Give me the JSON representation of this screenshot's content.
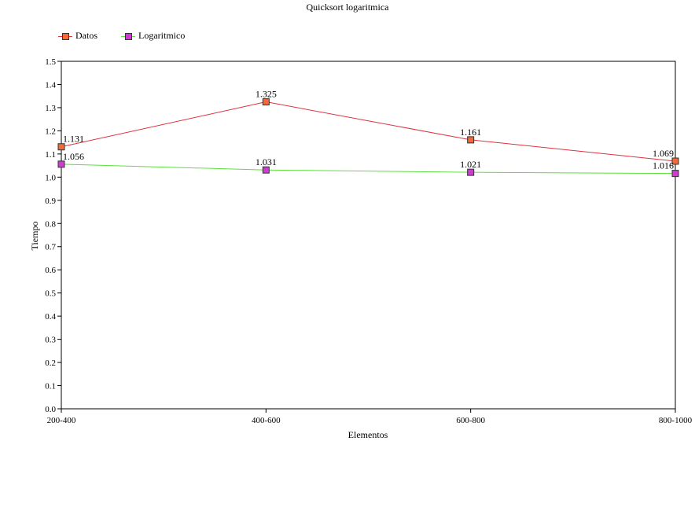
{
  "chart_data": {
    "type": "line",
    "title": "Quicksort logaritmica",
    "xlabel": "Elementos",
    "ylabel": "Tiempo",
    "categories": [
      "200-400",
      "400-600",
      "600-800",
      "800-1000"
    ],
    "ylim": [
      0,
      1.5
    ],
    "yticks": [
      0.0,
      0.1,
      0.2,
      0.3,
      0.4,
      0.5,
      0.6,
      0.7,
      0.8,
      0.9,
      1.0,
      1.1,
      1.2,
      1.3,
      1.4,
      1.5
    ],
    "ytick_labels": [
      "0.0",
      "0.1",
      "0.2",
      "0.3",
      "0.4",
      "0.5",
      "0.6",
      "0.7",
      "0.8",
      "0.9",
      "1.0",
      "1.1",
      "1.2",
      "1.3",
      "1.4",
      "1.5"
    ],
    "legend_position": "top-left",
    "grid": false,
    "series": [
      {
        "name": "Datos",
        "values": [
          1.131,
          1.325,
          1.161,
          1.069
        ],
        "labels": [
          "1.131",
          "1.325",
          "1.161",
          "1.069"
        ],
        "line_color": "#e03040",
        "marker_color": "#f26a3a"
      },
      {
        "name": "Logaritmico",
        "values": [
          1.056,
          1.031,
          1.021,
          1.016
        ],
        "labels": [
          "1.056",
          "1.031",
          "1.021",
          "1.016"
        ],
        "line_color": "#5ce03c",
        "marker_color": "#d23ad6"
      }
    ]
  }
}
